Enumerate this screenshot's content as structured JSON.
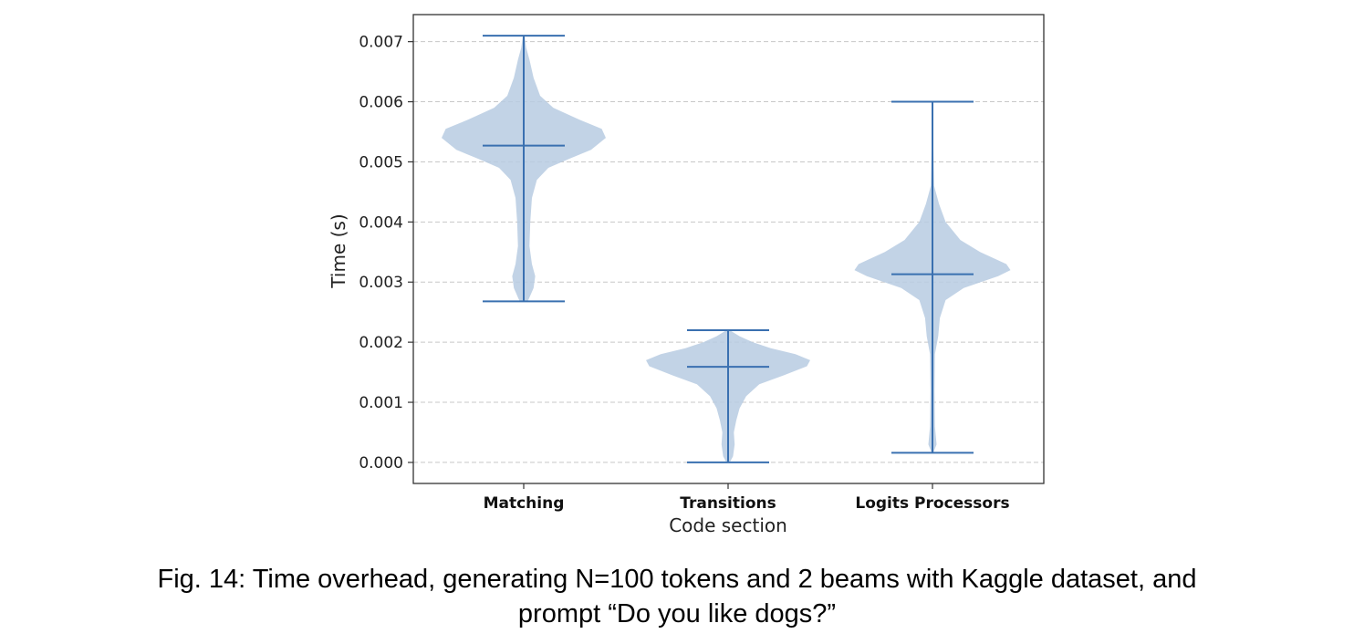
{
  "chart_data": {
    "type": "violin",
    "xlabel": "Code section",
    "ylabel": "Time (s)",
    "ylim": [
      -0.00035,
      0.00745
    ],
    "yticks": [
      0.0,
      0.001,
      0.002,
      0.003,
      0.004,
      0.005,
      0.006,
      0.007
    ],
    "ytick_labels": [
      "0.000",
      "0.001",
      "0.002",
      "0.003",
      "0.004",
      "0.005",
      "0.006",
      "0.007"
    ],
    "grid": "horizontal-dashed",
    "colors": {
      "body": "#b7cbe2",
      "line": "#3a70b0",
      "grid": "#c8c8c8",
      "axis": "#333333"
    },
    "categories": [
      "Matching",
      "Transitions",
      "Logits Processors"
    ],
    "series": [
      {
        "name": "Matching",
        "min": 0.00268,
        "max": 0.0071,
        "mean": 0.00527,
        "density": [
          [
            0.00268,
            0.05
          ],
          [
            0.0029,
            0.12
          ],
          [
            0.0031,
            0.14
          ],
          [
            0.0033,
            0.1
          ],
          [
            0.0036,
            0.07
          ],
          [
            0.004,
            0.08
          ],
          [
            0.0044,
            0.1
          ],
          [
            0.0047,
            0.16
          ],
          [
            0.0049,
            0.3
          ],
          [
            0.00505,
            0.55
          ],
          [
            0.0052,
            0.82
          ],
          [
            0.0054,
            1.0
          ],
          [
            0.00555,
            0.95
          ],
          [
            0.0057,
            0.68
          ],
          [
            0.0059,
            0.36
          ],
          [
            0.0061,
            0.2
          ],
          [
            0.0064,
            0.12
          ],
          [
            0.0067,
            0.07
          ],
          [
            0.0069,
            0.03
          ],
          [
            0.0071,
            0.01
          ]
        ]
      },
      {
        "name": "Transitions",
        "min": 0.0,
        "max": 0.0022,
        "mean": 0.00159,
        "density": [
          [
            0.0,
            0.02
          ],
          [
            0.0001,
            0.06
          ],
          [
            0.0003,
            0.08
          ],
          [
            0.0005,
            0.07
          ],
          [
            0.0007,
            0.1
          ],
          [
            0.0009,
            0.14
          ],
          [
            0.0011,
            0.22
          ],
          [
            0.0013,
            0.38
          ],
          [
            0.00145,
            0.68
          ],
          [
            0.0016,
            0.96
          ],
          [
            0.0017,
            1.0
          ],
          [
            0.0018,
            0.82
          ],
          [
            0.0019,
            0.52
          ],
          [
            0.002,
            0.3
          ],
          [
            0.0021,
            0.14
          ],
          [
            0.0022,
            0.02
          ]
        ]
      },
      {
        "name": "Logits Processors",
        "min": 0.00016,
        "max": 0.006,
        "mean": 0.00313,
        "density": [
          [
            0.00016,
            0.01
          ],
          [
            0.0003,
            0.05
          ],
          [
            0.0006,
            0.03
          ],
          [
            0.0012,
            0.025
          ],
          [
            0.0018,
            0.03
          ],
          [
            0.0021,
            0.07
          ],
          [
            0.0024,
            0.09
          ],
          [
            0.0027,
            0.16
          ],
          [
            0.0029,
            0.38
          ],
          [
            0.0031,
            0.8
          ],
          [
            0.0032,
            0.95
          ],
          [
            0.0033,
            0.9
          ],
          [
            0.0035,
            0.58
          ],
          [
            0.0037,
            0.34
          ],
          [
            0.004,
            0.16
          ],
          [
            0.0043,
            0.08
          ],
          [
            0.0046,
            0.02
          ],
          [
            0.006,
            0.0
          ]
        ]
      }
    ]
  },
  "caption": {
    "line1": "Fig. 14: Time overhead, generating N=100 tokens and 2 beams with Kaggle dataset, and",
    "line2": "prompt “Do you like dogs?”"
  }
}
